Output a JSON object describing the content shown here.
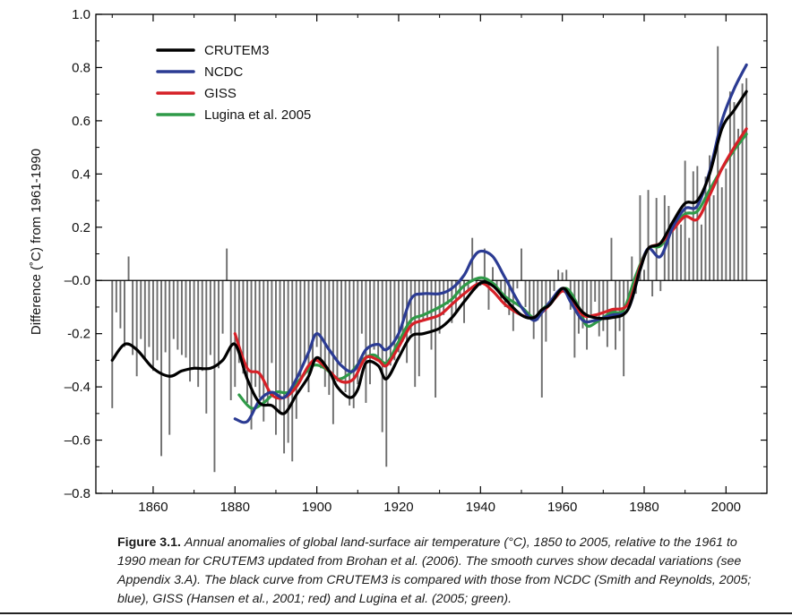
{
  "chart_data": {
    "type": "bar+line",
    "ylabel": "Difference (˚C) from 1961-1990",
    "xlim": [
      1846,
      2010
    ],
    "ylim": [
      -0.8,
      1.0
    ],
    "x_ticks": [
      1860,
      1880,
      1900,
      1920,
      1940,
      1960,
      1980,
      2000
    ],
    "y_ticks": [
      {
        "value": 1.0,
        "label": "1.0"
      },
      {
        "value": 0.8,
        "label": "0.8"
      },
      {
        "value": 0.6,
        "label": "0.6"
      },
      {
        "value": 0.4,
        "label": "0.4"
      },
      {
        "value": 0.2,
        "label": "0.2"
      },
      {
        "value": 0.0,
        "label": "–0.0"
      },
      {
        "value": -0.2,
        "label": "-0.2"
      },
      {
        "value": -0.4,
        "label": "–0.4"
      },
      {
        "value": -0.6,
        "label": "–0.6"
      },
      {
        "value": -0.8,
        "label": "–0.8"
      }
    ],
    "bar_color": "#6e6e6e",
    "bars": {
      "start_year": 1850,
      "values": [
        -0.48,
        -0.12,
        -0.18,
        -0.25,
        0.09,
        -0.28,
        -0.36,
        -0.22,
        -0.3,
        -0.25,
        -0.34,
        -0.3,
        -0.66,
        -0.27,
        -0.58,
        -0.22,
        -0.26,
        -0.28,
        -0.29,
        -0.38,
        -0.33,
        -0.4,
        -0.34,
        -0.5,
        -0.28,
        -0.72,
        -0.33,
        -0.2,
        0.12,
        -0.45,
        -0.4,
        -0.31,
        -0.35,
        -0.46,
        -0.56,
        -0.4,
        -0.44,
        -0.53,
        -0.47,
        -0.31,
        -0.58,
        -0.5,
        -0.65,
        -0.61,
        -0.68,
        -0.52,
        -0.38,
        -0.3,
        -0.42,
        -0.31,
        -0.25,
        -0.33,
        -0.4,
        -0.43,
        -0.54,
        -0.38,
        -0.31,
        -0.42,
        -0.47,
        -0.48,
        -0.39,
        -0.2,
        -0.46,
        -0.39,
        -0.26,
        -0.3,
        -0.57,
        -0.7,
        -0.32,
        -0.3,
        -0.27,
        -0.23,
        -0.31,
        -0.2,
        -0.4,
        -0.36,
        -0.15,
        -0.14,
        -0.26,
        -0.44,
        -0.2,
        -0.13,
        -0.09,
        -0.16,
        -0.12,
        -0.06,
        -0.16,
        -0.04,
        0.16,
        -0.03,
        -0.02,
        0.12,
        -0.11,
        0.05,
        -0.03,
        -0.08,
        -0.1,
        -0.13,
        -0.19,
        -0.03,
        0.12,
        -0.1,
        -0.14,
        -0.22,
        -0.15,
        -0.44,
        -0.23,
        -0.09,
        -0.04,
        0.04,
        0.03,
        0.04,
        -0.11,
        -0.29,
        -0.2,
        -0.18,
        -0.26,
        -0.13,
        -0.08,
        -0.21,
        -0.19,
        -0.25,
        0.16,
        -0.26,
        -0.19,
        -0.36,
        -0.1,
        0.09,
        -0.05,
        0.32,
        0.04,
        0.34,
        -0.06,
        0.31,
        -0.04,
        0.32,
        0.28,
        0.22,
        0.24,
        0.21,
        0.45,
        0.16,
        0.41,
        0.43,
        0.21,
        0.39,
        0.47,
        0.32,
        0.88,
        0.35,
        0.42,
        0.71,
        0.67,
        0.57,
        0.74,
        0.76
      ]
    },
    "legend_position": "top-left",
    "series": [
      {
        "name": "CRUTEM3",
        "color": "#000000",
        "x": [
          1850,
          1853,
          1856,
          1860,
          1864,
          1867,
          1870,
          1874,
          1877,
          1880,
          1883,
          1886,
          1889,
          1892,
          1895,
          1898,
          1900,
          1903,
          1905,
          1908,
          1910,
          1912,
          1915,
          1917,
          1920,
          1923,
          1926,
          1930,
          1933,
          1936,
          1940,
          1943,
          1946,
          1950,
          1953,
          1955,
          1957,
          1960,
          1962,
          1965,
          1968,
          1972,
          1976,
          1979,
          1981,
          1984,
          1987,
          1990,
          1993,
          1996,
          1999,
          2002,
          2005
        ],
        "y": [
          -0.3,
          -0.24,
          -0.26,
          -0.33,
          -0.36,
          -0.34,
          -0.33,
          -0.33,
          -0.3,
          -0.24,
          -0.37,
          -0.46,
          -0.47,
          -0.5,
          -0.43,
          -0.36,
          -0.29,
          -0.34,
          -0.4,
          -0.44,
          -0.41,
          -0.31,
          -0.32,
          -0.37,
          -0.29,
          -0.21,
          -0.2,
          -0.18,
          -0.14,
          -0.08,
          -0.01,
          -0.02,
          -0.07,
          -0.13,
          -0.14,
          -0.11,
          -0.09,
          -0.03,
          -0.06,
          -0.12,
          -0.14,
          -0.14,
          -0.11,
          0.04,
          0.12,
          0.14,
          0.22,
          0.29,
          0.3,
          0.4,
          0.57,
          0.64,
          0.71
        ]
      },
      {
        "name": "NCDC",
        "color": "#2b3b93",
        "x": [
          1880,
          1883,
          1886,
          1889,
          1892,
          1895,
          1898,
          1900,
          1903,
          1906,
          1909,
          1912,
          1915,
          1917,
          1920,
          1923,
          1926,
          1930,
          1933,
          1936,
          1938,
          1940,
          1943,
          1946,
          1950,
          1953,
          1955,
          1957,
          1960,
          1962,
          1965,
          1968,
          1972,
          1976,
          1979,
          1981,
          1984,
          1987,
          1990,
          1993,
          1996,
          1999,
          2002,
          2005
        ],
        "y": [
          -0.52,
          -0.53,
          -0.45,
          -0.42,
          -0.44,
          -0.37,
          -0.27,
          -0.2,
          -0.26,
          -0.32,
          -0.34,
          -0.26,
          -0.24,
          -0.26,
          -0.2,
          -0.07,
          -0.05,
          -0.05,
          -0.03,
          0.02,
          0.08,
          0.11,
          0.09,
          0.01,
          -0.1,
          -0.15,
          -0.12,
          -0.08,
          -0.03,
          -0.08,
          -0.15,
          -0.15,
          -0.13,
          -0.11,
          0.04,
          0.12,
          0.09,
          0.2,
          0.27,
          0.28,
          0.41,
          0.6,
          0.72,
          0.81
        ]
      },
      {
        "name": "GISS",
        "color": "#d62027",
        "x": [
          1880,
          1883,
          1886,
          1889,
          1892,
          1895,
          1898,
          1900,
          1903,
          1906,
          1909,
          1912,
          1915,
          1917,
          1920,
          1923,
          1926,
          1930,
          1933,
          1936,
          1940,
          1943,
          1946,
          1950,
          1953,
          1955,
          1957,
          1960,
          1962,
          1965,
          1968,
          1972,
          1976,
          1979,
          1981,
          1984,
          1987,
          1990,
          1993,
          1996,
          1999,
          2002,
          2005
        ],
        "y": [
          -0.2,
          -0.33,
          -0.35,
          -0.43,
          -0.44,
          -0.4,
          -0.32,
          -0.3,
          -0.34,
          -0.38,
          -0.37,
          -0.29,
          -0.3,
          -0.32,
          -0.25,
          -0.17,
          -0.15,
          -0.13,
          -0.09,
          -0.05,
          -0.01,
          -0.04,
          -0.09,
          -0.13,
          -0.14,
          -0.12,
          -0.09,
          -0.04,
          -0.07,
          -0.13,
          -0.13,
          -0.11,
          -0.09,
          0.05,
          0.12,
          0.14,
          0.19,
          0.24,
          0.23,
          0.32,
          0.42,
          0.5,
          0.57
        ]
      },
      {
        "name": "Lugina et al. 2005",
        "color": "#2f9a48",
        "x": [
          1881,
          1884,
          1887,
          1890,
          1893,
          1896,
          1899,
          1902,
          1905,
          1908,
          1911,
          1914,
          1917,
          1920,
          1923,
          1926,
          1930,
          1933,
          1936,
          1940,
          1943,
          1946,
          1950,
          1953,
          1955,
          1958,
          1961,
          1964,
          1966,
          1969,
          1972,
          1975,
          1978,
          1981,
          1984,
          1987,
          1990,
          1993,
          1996,
          1999,
          2002,
          2005
        ],
        "y": [
          -0.43,
          -0.48,
          -0.46,
          -0.42,
          -0.42,
          -0.37,
          -0.32,
          -0.33,
          -0.37,
          -0.35,
          -0.3,
          -0.28,
          -0.31,
          -0.23,
          -0.15,
          -0.13,
          -0.1,
          -0.07,
          -0.02,
          0.01,
          -0.01,
          -0.06,
          -0.1,
          -0.14,
          -0.11,
          -0.07,
          -0.03,
          -0.1,
          -0.17,
          -0.15,
          -0.12,
          -0.11,
          0.02,
          0.12,
          0.13,
          0.2,
          0.25,
          0.26,
          0.34,
          0.42,
          0.49,
          0.55
        ]
      }
    ]
  },
  "caption": {
    "figure_label": "Figure 3.1.",
    "text": "Annual anomalies of global land-surface air temperature (°C), 1850 to 2005, relative to the 1961 to 1990 mean for CRUTEM3 updated from Brohan et al. (2006). The smooth curves show decadal variations (see Appendix 3.A). The black curve from CRUTEM3 is compared with those from NCDC (Smith and Reynolds, 2005; blue), GISS (Hansen et al., 2001; red) and Lugina et al. (2005; green)."
  }
}
